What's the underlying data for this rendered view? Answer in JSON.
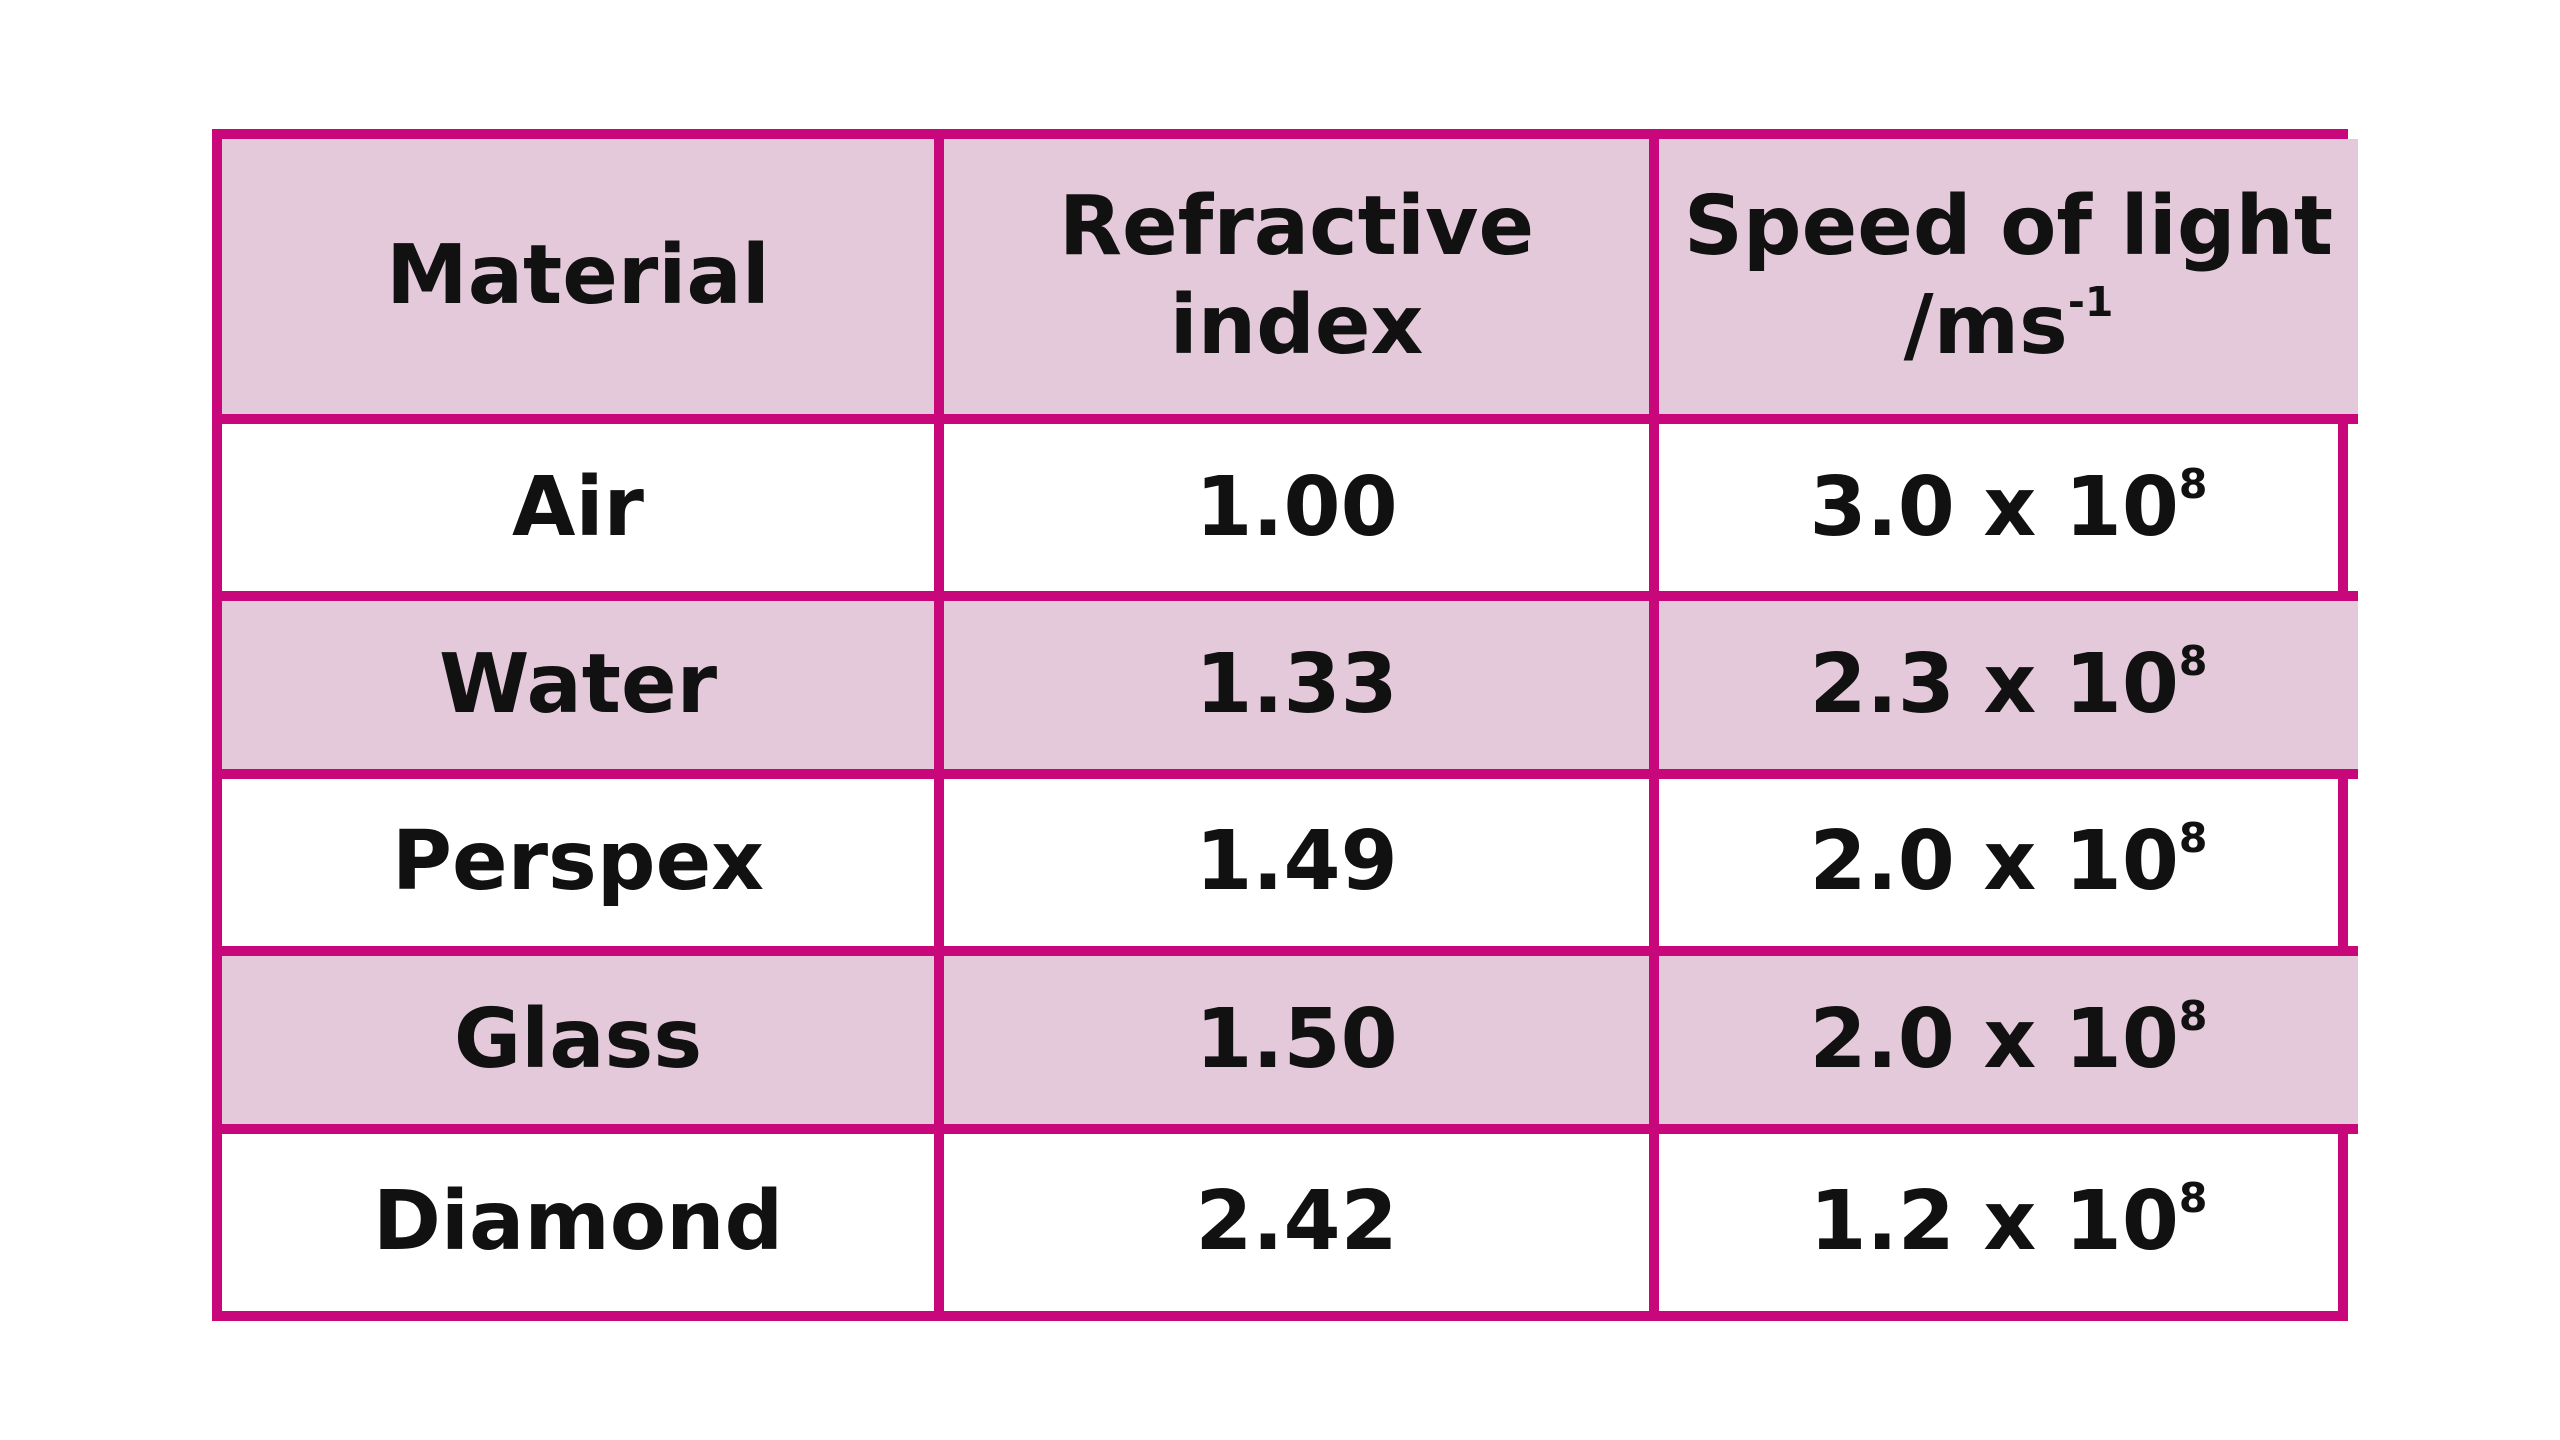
{
  "table": {
    "header": [
      {
        "text": "Material"
      },
      {
        "text": "Refractive index"
      },
      {
        "text": "Speed of light /ms",
        "sup": "-1"
      }
    ],
    "rows": [
      [
        "Air",
        "1.00",
        {
          "text": "3.0 x 10",
          "sup": "8"
        }
      ],
      [
        "Water",
        "1.33",
        {
          "text": "2.3 x 10",
          "sup": "8"
        }
      ],
      [
        "Perspex",
        "1.49",
        {
          "text": "2.0 x 10",
          "sup": "8"
        }
      ],
      [
        "Glass",
        "1.50",
        {
          "text": "2.0 x 10",
          "sup": "8"
        }
      ],
      [
        "Diamond",
        "2.42",
        {
          "text": "1.2 x 10",
          "sup": "8"
        }
      ]
    ]
  }
}
